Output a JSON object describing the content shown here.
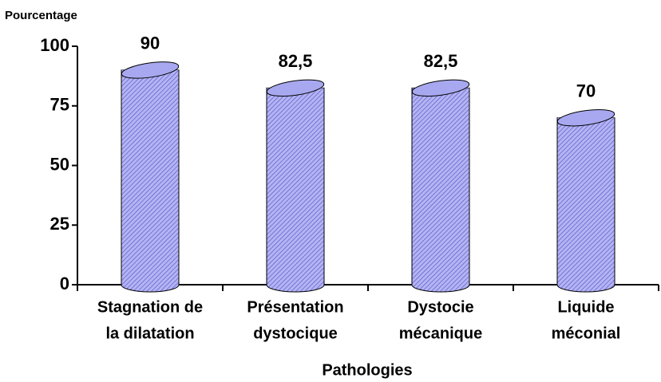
{
  "chart_data": {
    "type": "bar",
    "ylabel": "Pourcentage",
    "xlabel": "Pathologies",
    "categories": [
      [
        "Stagnation de",
        "la dilatation"
      ],
      [
        "Présentation",
        "dystocique"
      ],
      [
        "Dystocie",
        "mécanique"
      ],
      [
        "Liquide",
        "méconial"
      ]
    ],
    "values": [
      90,
      82.5,
      82.5,
      70
    ],
    "value_labels": [
      "90",
      "82,5",
      "82,5",
      "70"
    ],
    "color": "#a8a8f0",
    "ylim": [
      0,
      100
    ],
    "yticks": [
      0,
      25,
      50,
      75,
      100
    ]
  }
}
